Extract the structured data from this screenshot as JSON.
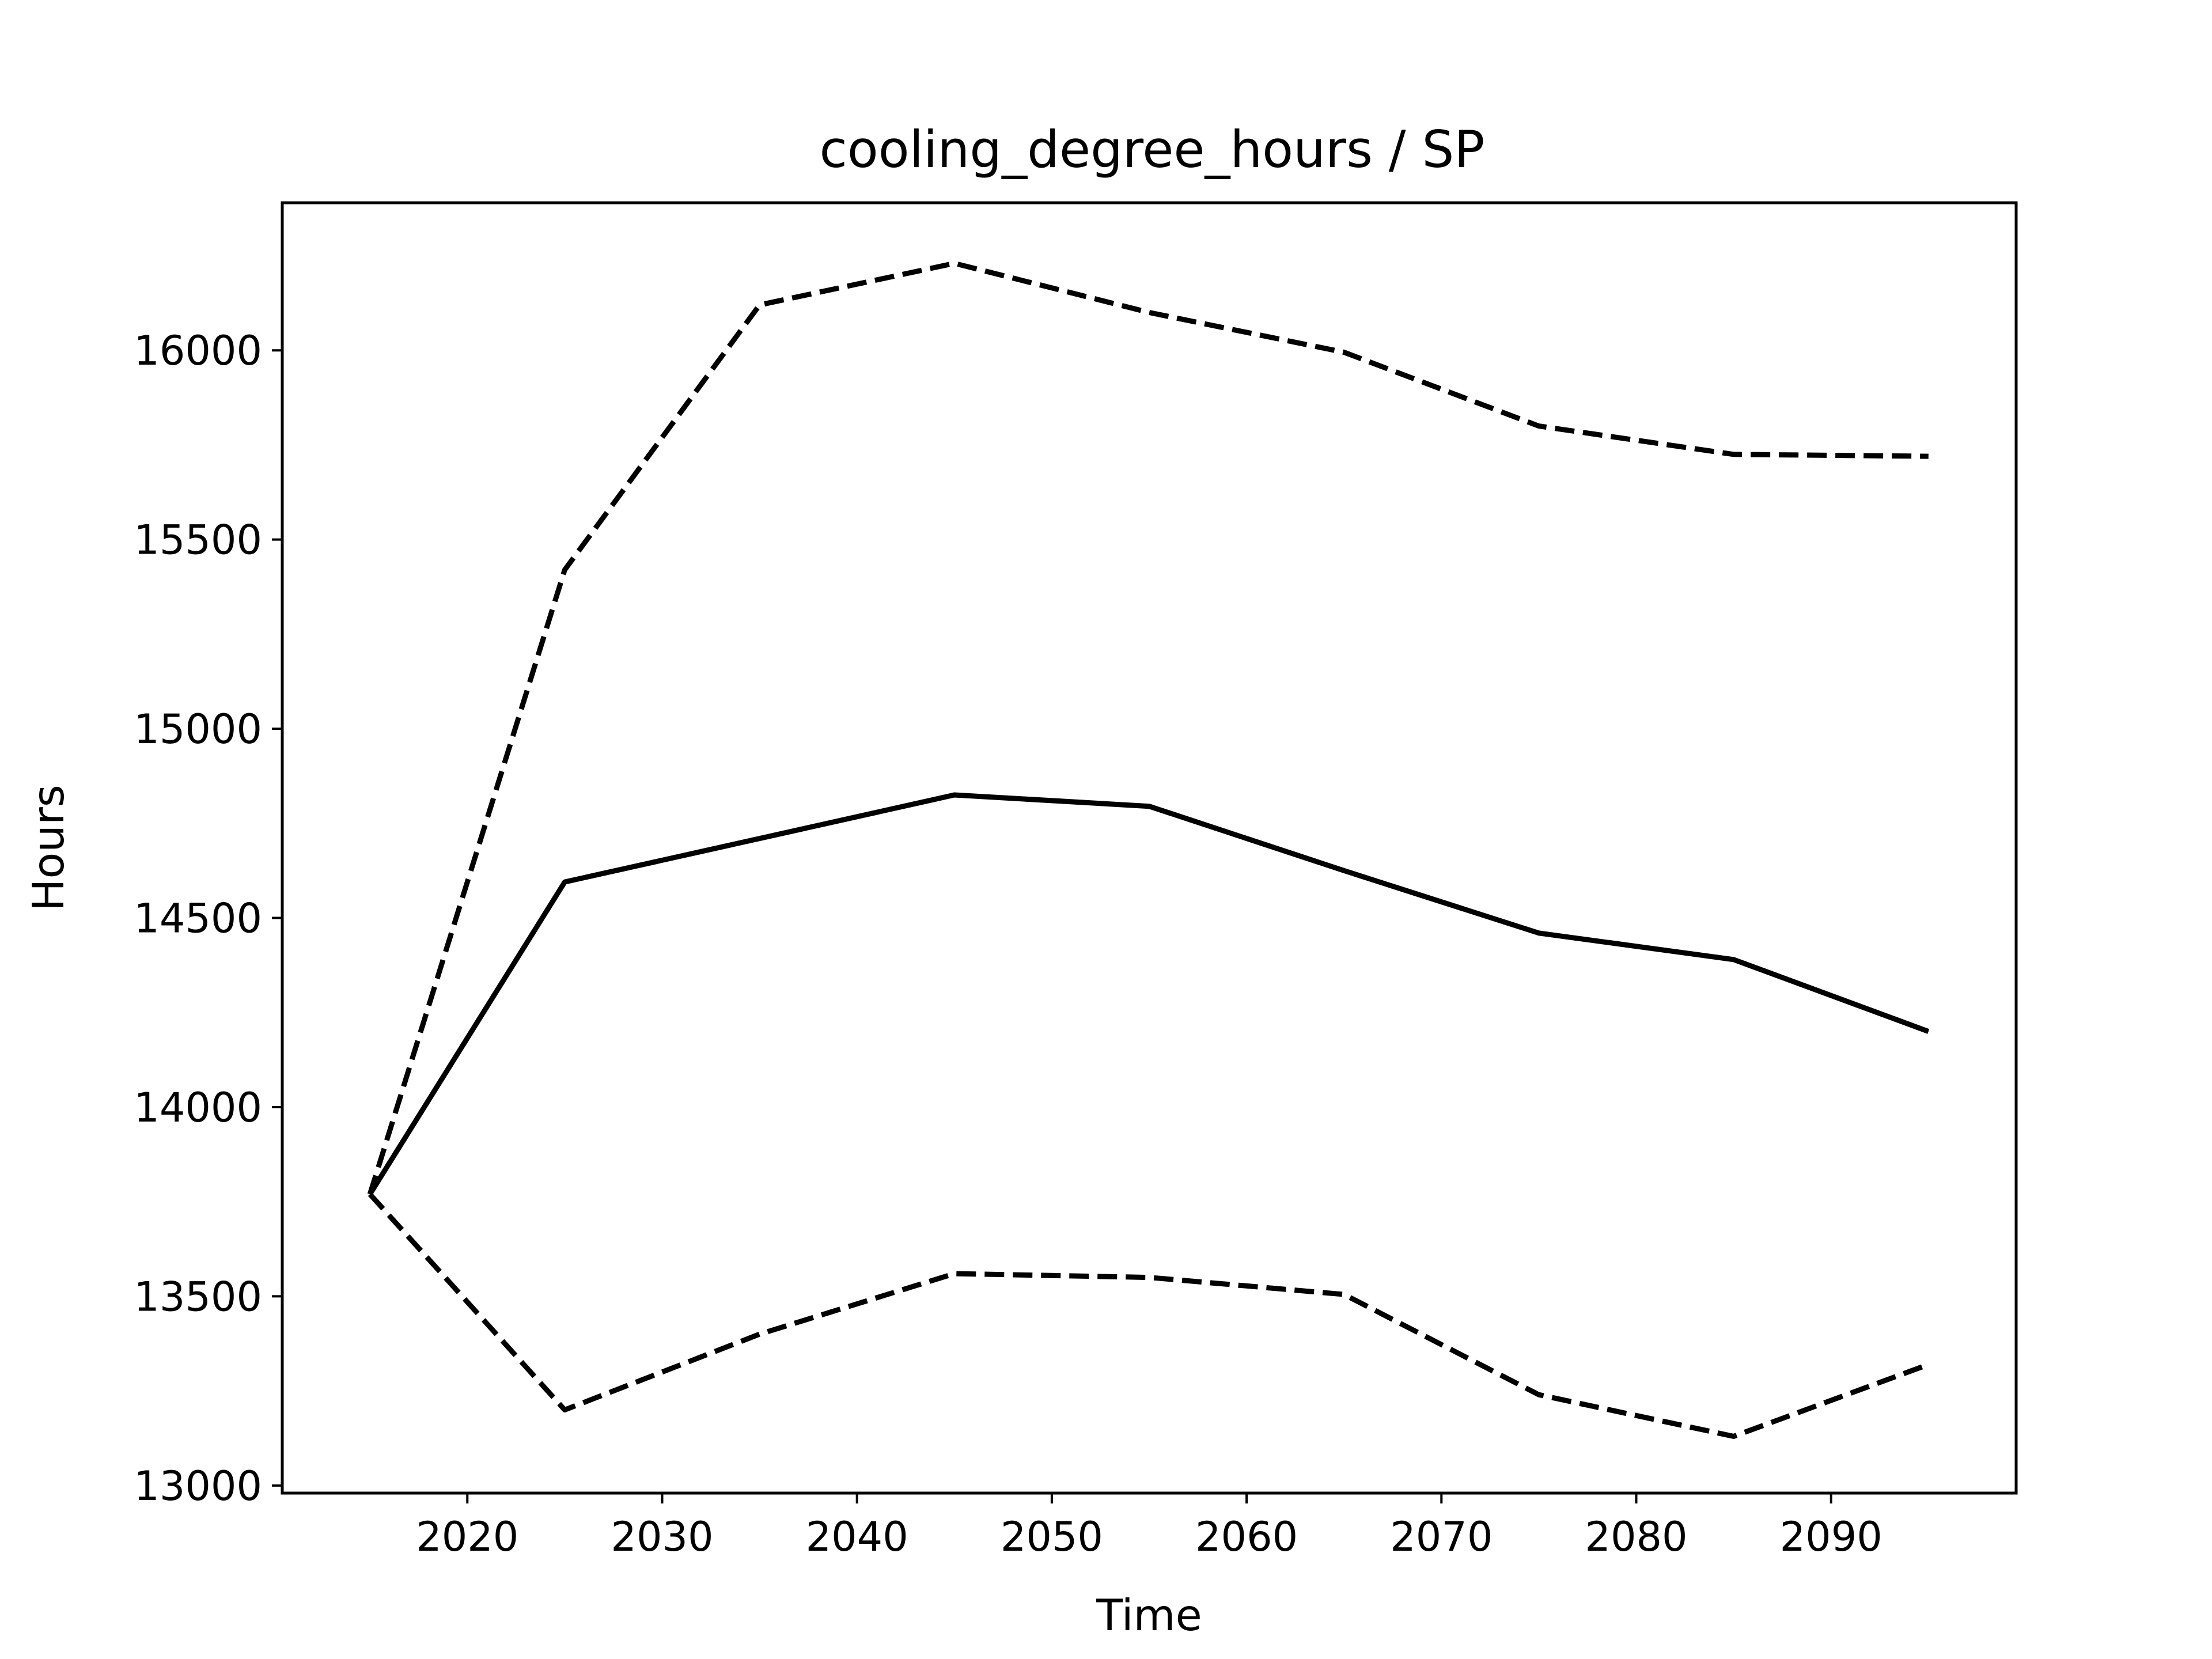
{
  "chart_data": {
    "type": "line",
    "title": "cooling_degree_hours / SP",
    "xlabel": "Time",
    "ylabel": "Hours",
    "xlim": [
      2010.5,
      2099.5
    ],
    "ylim": [
      12980,
      16390
    ],
    "xticks": [
      2020,
      2030,
      2040,
      2050,
      2060,
      2070,
      2080,
      2090
    ],
    "yticks": [
      13000,
      13500,
      14000,
      14500,
      15000,
      15500,
      16000
    ],
    "grid": false,
    "x": [
      2015,
      2025,
      2035,
      2045,
      2055,
      2065,
      2075,
      2085,
      2095
    ],
    "series": [
      {
        "style": "dashed",
        "color": "#000000",
        "values": [
          13770,
          15420,
          16120,
          16230,
          16100,
          15995,
          15800,
          15725,
          15720
        ]
      },
      {
        "style": "solid",
        "color": "#000000",
        "values": [
          13770,
          14595,
          14710,
          14825,
          14795,
          14625,
          14460,
          14390,
          14200
        ]
      },
      {
        "style": "dashed",
        "color": "#000000",
        "values": [
          13770,
          13200,
          13400,
          13560,
          13550,
          13505,
          13240,
          13130,
          13320
        ]
      }
    ]
  }
}
